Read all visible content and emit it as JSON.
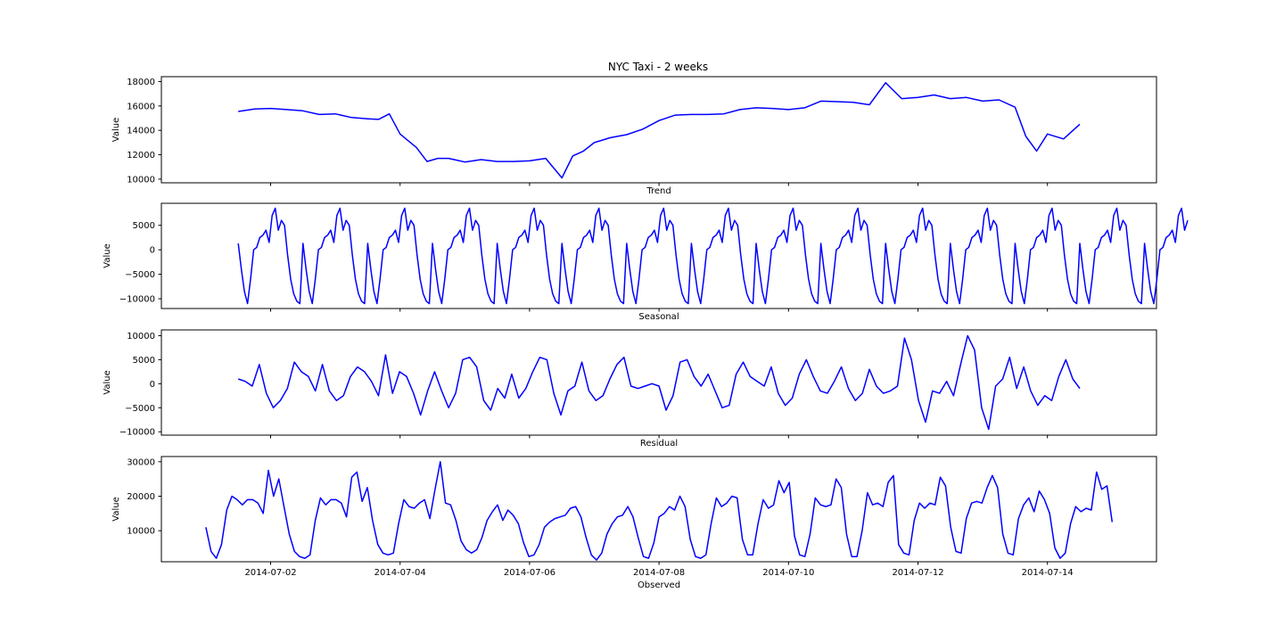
{
  "figure": {
    "title": "NYC Taxi - 2 weeks",
    "line_color": "#0000ff"
  },
  "chart_data": [
    {
      "type": "line",
      "name": "Trend",
      "xlabel": "Trend",
      "ylabel": "Value",
      "ylim": [
        9700,
        18400
      ],
      "yticks": [
        10000,
        12000,
        14000,
        16000,
        18000
      ],
      "tick_labels": [
        "10000",
        "12000",
        "14000",
        "16000",
        "18000"
      ],
      "x_range": [
        "2014-07-01",
        "2014-07-14"
      ],
      "grid": false,
      "series": [
        {
          "x": [
            "2014-07-01 12:00",
            "2014-07-01 18:00",
            "2014-07-02 00:00",
            "2014-07-02 06:00",
            "2014-07-02 12:00",
            "2014-07-02 18:00",
            "2014-07-03 00:00",
            "2014-07-03 06:00",
            "2014-07-03 12:00",
            "2014-07-03 16:00",
            "2014-07-03 20:00",
            "2014-07-04 00:00",
            "2014-07-04 06:00",
            "2014-07-04 10:00",
            "2014-07-04 14:00",
            "2014-07-04 18:00",
            "2014-07-05 00:00",
            "2014-07-05 06:00",
            "2014-07-05 12:00",
            "2014-07-05 18:00",
            "2014-07-06 00:00",
            "2014-07-06 06:00",
            "2014-07-06 12:00",
            "2014-07-06 16:00",
            "2014-07-06 20:00",
            "2014-07-07 00:00",
            "2014-07-07 06:00",
            "2014-07-07 12:00",
            "2014-07-07 18:00",
            "2014-07-08 00:00",
            "2014-07-08 06:00",
            "2014-07-08 12:00",
            "2014-07-08 18:00",
            "2014-07-09 00:00",
            "2014-07-09 06:00",
            "2014-07-09 12:00",
            "2014-07-09 18:00",
            "2014-07-10 00:00",
            "2014-07-10 06:00",
            "2014-07-10 12:00",
            "2014-07-10 18:00",
            "2014-07-11 00:00",
            "2014-07-11 06:00",
            "2014-07-11 12:00",
            "2014-07-11 18:00",
            "2014-07-12 00:00",
            "2014-07-12 06:00",
            "2014-07-12 12:00",
            "2014-07-12 18:00",
            "2014-07-13 00:00",
            "2014-07-13 06:00",
            "2014-07-13 12:00",
            "2014-07-13 16:00",
            "2014-07-13 20:00",
            "2014-07-14 00:00",
            "2014-07-14 06:00",
            "2014-07-14 12:00"
          ],
          "y": [
            15550,
            15750,
            15800,
            15700,
            15600,
            15300,
            15350,
            15050,
            14950,
            14900,
            15350,
            13700,
            12600,
            11450,
            11700,
            11700,
            11400,
            11600,
            11450,
            11450,
            11500,
            11700,
            10100,
            11900,
            12300,
            13000,
            13400,
            13650,
            14100,
            14800,
            15250,
            15300,
            15300,
            15350,
            15700,
            15850,
            15800,
            15700,
            15850,
            16400,
            16350,
            16300,
            16100,
            17900,
            16600,
            16700,
            16900,
            16600,
            16700,
            16400,
            16500,
            15900,
            13500,
            12300,
            13700,
            13300,
            14500
          ]
        }
      ]
    },
    {
      "type": "line",
      "name": "Seasonal",
      "xlabel": "Seasonal",
      "ylabel": "Value",
      "ylim": [
        -12000,
        9500
      ],
      "yticks": [
        -10000,
        -5000,
        0,
        5000
      ],
      "tick_labels": [
        "−10000",
        "−5000",
        "0",
        "5000"
      ],
      "x_range": [
        "2014-07-01",
        "2014-07-15"
      ],
      "grid": false,
      "period_hours": 24,
      "cycles": 14.7,
      "daily_profile": [
        1300,
        -4000,
        -8500,
        -11000,
        -6000,
        0,
        500,
        2500,
        3000,
        4000,
        1500,
        7000,
        8500,
        4000,
        6000,
        5000,
        -1000,
        -6000,
        -9000,
        -10500,
        -11000
      ]
    },
    {
      "type": "line",
      "name": "Residual",
      "xlabel": "Residual",
      "ylabel": "Value",
      "ylim": [
        -10700,
        11200
      ],
      "yticks": [
        -10000,
        -5000,
        0,
        5000,
        10000
      ],
      "tick_labels": [
        "−10000",
        "−5000",
        "0",
        "5000",
        "10000"
      ],
      "x_range": [
        "2014-07-01 12:00",
        "2014-07-14 12:00"
      ],
      "grid": false,
      "series": [
        {
          "y": [
            1000,
            500,
            -500,
            4000,
            -2000,
            -5000,
            -3500,
            -1000,
            4500,
            2500,
            1500,
            -1500,
            4000,
            -1500,
            -3500,
            -2500,
            1500,
            3500,
            2500,
            500,
            -2500,
            6000,
            -2000,
            2500,
            1500,
            -2000,
            -6500,
            -1500,
            2500,
            -1500,
            -5000,
            -2000,
            5000,
            5500,
            3500,
            -3500,
            -5500,
            -1000,
            -3000,
            2000,
            -3000,
            -1000,
            2500,
            5500,
            5000,
            -2000,
            -6500,
            -1500,
            -500,
            4500,
            -1500,
            -3500,
            -2500,
            1000,
            4000,
            5500,
            -500,
            -1000,
            -500,
            0,
            -500,
            -5500,
            -2500,
            4500,
            5000,
            1500,
            -500,
            2000,
            -1500,
            -5000,
            -4500,
            2000,
            4500,
            1500,
            500,
            -500,
            3500,
            -2000,
            -4500,
            -3000,
            2000,
            5000,
            1500,
            -1500,
            -2000,
            500,
            3500,
            -1000,
            -3500,
            -2000,
            3000,
            -500,
            -2000,
            -1500,
            -500,
            9500,
            5000,
            -3500,
            -8000,
            -1500,
            -2000,
            500,
            -2500,
            4000,
            10000,
            7000,
            -5000,
            -9500,
            -500,
            1000,
            5500,
            -1000,
            3500,
            -1500,
            -4500,
            -2500,
            -3500,
            1500,
            5000,
            1000,
            -1000
          ]
        }
      ]
    },
    {
      "type": "line",
      "name": "Observed",
      "xlabel": "Observed",
      "ylabel": "Value",
      "ylim": [
        1000,
        31500
      ],
      "yticks": [
        10000,
        20000,
        30000
      ],
      "tick_labels": [
        "10000",
        "20000",
        "30000"
      ],
      "x_range": [
        "2014-07-01",
        "2014-07-15"
      ],
      "xticks": [
        "2014-07-02",
        "2014-07-04",
        "2014-07-06",
        "2014-07-08",
        "2014-07-10",
        "2014-07-12",
        "2014-07-14"
      ],
      "grid": false,
      "series": [
        {
          "y": [
            11000,
            4000,
            2000,
            6000,
            16000,
            20000,
            19000,
            17500,
            19000,
            19000,
            18000,
            15000,
            27500,
            20000,
            25000,
            17000,
            9000,
            4000,
            2500,
            2000,
            3000,
            13000,
            19500,
            17500,
            19000,
            19000,
            18000,
            14000,
            25500,
            27000,
            18500,
            22500,
            13000,
            6000,
            3500,
            3000,
            3500,
            12000,
            19000,
            17000,
            16500,
            18000,
            19000,
            13500,
            22000,
            30000,
            18000,
            17500,
            13000,
            7000,
            4500,
            3500,
            4500,
            8000,
            13000,
            15500,
            17500,
            13000,
            16000,
            14500,
            12000,
            6500,
            2500,
            3000,
            6000,
            11000,
            12500,
            13500,
            14000,
            14500,
            16500,
            17000,
            14000,
            8000,
            3000,
            1500,
            3500,
            9000,
            12000,
            14000,
            14500,
            17000,
            14000,
            8000,
            2500,
            2000,
            6500,
            14000,
            15000,
            17000,
            16000,
            20000,
            17000,
            7500,
            2500,
            2000,
            3000,
            12000,
            19500,
            17000,
            18000,
            20000,
            19500,
            7500,
            3000,
            3000,
            12000,
            19000,
            16500,
            17500,
            24500,
            21000,
            24000,
            8500,
            3000,
            2500,
            9000,
            19500,
            17500,
            17000,
            17500,
            25000,
            22500,
            9000,
            2500,
            2500,
            10000,
            21000,
            17500,
            18000,
            17000,
            24000,
            26000,
            6000,
            3500,
            3000,
            13000,
            18000,
            16500,
            18000,
            17500,
            25500,
            23000,
            11000,
            4000,
            3500,
            13500,
            18000,
            18500,
            18000,
            22500,
            26000,
            22500,
            9000,
            3500,
            3000,
            13500,
            17500,
            19500,
            15500,
            21500,
            19000,
            15000,
            5000,
            2000,
            3500,
            12000,
            17000,
            15500,
            16500,
            16000,
            27000,
            22000,
            23000,
            12500
          ]
        }
      ]
    }
  ]
}
